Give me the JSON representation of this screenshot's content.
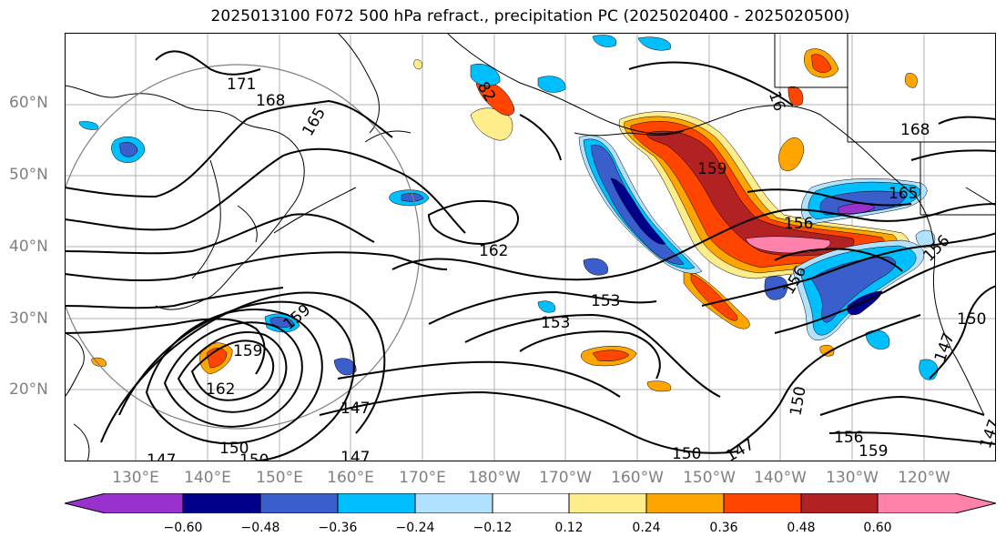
{
  "title": "2025013100 F072 500 hPa refract., precipitation PC (2025020400 - 2025020500)",
  "lat_labels": [
    "60°N",
    "50°N",
    "40°N",
    "30°N",
    "20°N"
  ],
  "lon_labels": [
    "130°E",
    "140°E",
    "150°E",
    "160°E",
    "170°E",
    "180°W",
    "170°W",
    "160°W",
    "150°W",
    "140°W",
    "130°W",
    "120°W"
  ],
  "contour_labels": [
    "171",
    "168",
    "165",
    "162",
    "159",
    "156",
    "153",
    "153",
    "150",
    "147",
    "147",
    "147",
    "147",
    "159",
    "159",
    "162",
    "156",
    "156",
    "165",
    "168",
    "150",
    "150",
    "159",
    "156",
    "147",
    "150",
    "147",
    "150",
    "16",
    "82"
  ],
  "colorbar": {
    "tick_labels": [
      "−0.60",
      "−0.48",
      "−0.36",
      "−0.24",
      "−0.12",
      "0.12",
      "0.24",
      "0.36",
      "0.48",
      "0.60"
    ],
    "colors": [
      "#9932cc",
      "#00008b",
      "#3a5fcd",
      "#00bfff",
      "#b0e2ff",
      "#ffffff",
      "#ffec8b",
      "#ffa500",
      "#ff4500",
      "#b22222",
      "#ff82ab"
    ]
  }
}
